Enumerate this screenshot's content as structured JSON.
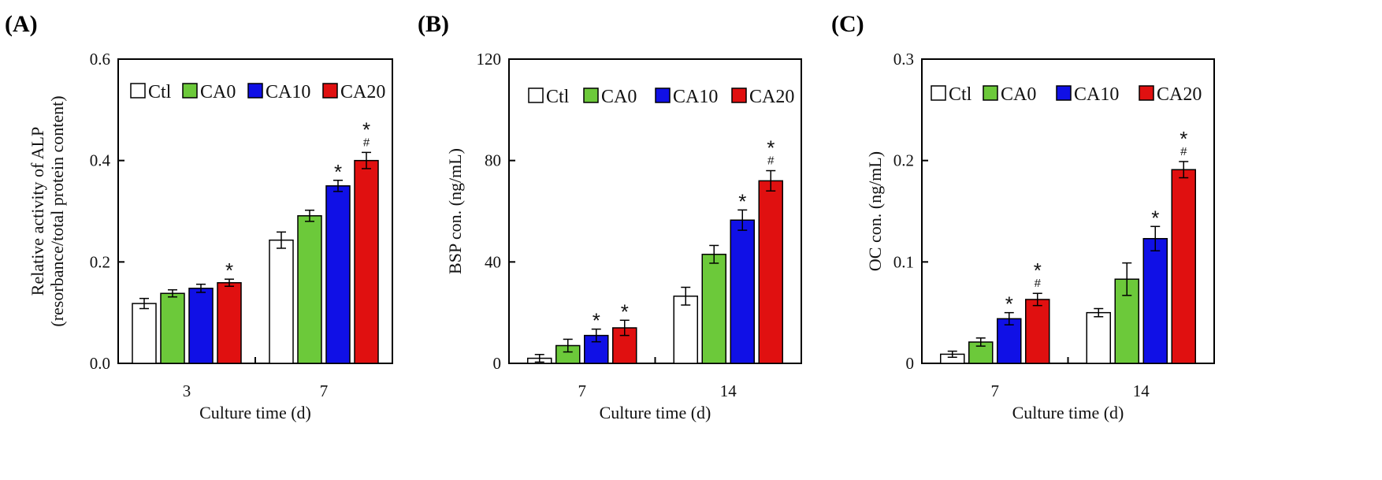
{
  "colors": {
    "Ctl": "#ffffff",
    "CA0": "#6cc93a",
    "CA10": "#1010e6",
    "CA20": "#e01010"
  },
  "chart_data": [
    {
      "panel_label": "(A)",
      "type": "bar",
      "xlabel": "Culture time (d)",
      "ylabel_line1": "Relative activity of ALP",
      "ylabel_line2": "(resorbance/total protein content)",
      "ylim": [
        0,
        0.6
      ],
      "yticks": [
        "0.0",
        "0.2",
        "0.4",
        "0.6"
      ],
      "legend_position": "top",
      "categories": [
        "3",
        "7"
      ],
      "series": [
        {
          "name": "Ctl",
          "values": [
            0.118,
            0.243
          ],
          "errors": [
            0.01,
            0.016
          ],
          "marks": [
            "",
            ""
          ]
        },
        {
          "name": "CA0",
          "values": [
            0.138,
            0.291
          ],
          "errors": [
            0.007,
            0.011
          ],
          "marks": [
            "",
            ""
          ]
        },
        {
          "name": "CA10",
          "values": [
            0.148,
            0.35
          ],
          "errors": [
            0.008,
            0.011
          ],
          "marks": [
            "",
            "*"
          ]
        },
        {
          "name": "CA20",
          "values": [
            0.159,
            0.4
          ],
          "errors": [
            0.007,
            0.016
          ],
          "marks": [
            "*",
            "*#"
          ]
        }
      ]
    },
    {
      "panel_label": "(B)",
      "type": "bar",
      "xlabel": "Culture time (d)",
      "ylabel_line1": "BSP con. (ng/mL)",
      "ylabel_line2": "",
      "ylim": [
        0,
        120
      ],
      "yticks": [
        "0",
        "40",
        "80",
        "120"
      ],
      "legend_position": "top",
      "categories": [
        "7",
        "14"
      ],
      "series": [
        {
          "name": "Ctl",
          "values": [
            2.0,
            26.5
          ],
          "errors": [
            1.5,
            3.5
          ],
          "marks": [
            "",
            ""
          ]
        },
        {
          "name": "CA0",
          "values": [
            7.0,
            43.0
          ],
          "errors": [
            2.5,
            3.5
          ],
          "marks": [
            "",
            ""
          ]
        },
        {
          "name": "CA10",
          "values": [
            11.0,
            56.5
          ],
          "errors": [
            2.5,
            4.0
          ],
          "marks": [
            "*",
            "*"
          ]
        },
        {
          "name": "CA20",
          "values": [
            14.0,
            72.0
          ],
          "errors": [
            3.0,
            4.0
          ],
          "marks": [
            "*",
            "*#"
          ]
        }
      ]
    },
    {
      "panel_label": "(C)",
      "type": "bar",
      "xlabel": "Culture time (d)",
      "ylabel_line1": "OC con. (ng/mL)",
      "ylabel_line2": "",
      "ylim": [
        0,
        0.3
      ],
      "yticks": [
        "0",
        "0.1",
        "0.2",
        "0.3"
      ],
      "legend_position": "top",
      "categories": [
        "7",
        "14"
      ],
      "series": [
        {
          "name": "Ctl",
          "values": [
            0.009,
            0.05
          ],
          "errors": [
            0.003,
            0.004
          ],
          "marks": [
            "",
            ""
          ]
        },
        {
          "name": "CA0",
          "values": [
            0.021,
            0.083
          ],
          "errors": [
            0.004,
            0.016
          ],
          "marks": [
            "",
            ""
          ]
        },
        {
          "name": "CA10",
          "values": [
            0.044,
            0.123
          ],
          "errors": [
            0.006,
            0.012
          ],
          "marks": [
            "*",
            "*"
          ]
        },
        {
          "name": "CA20",
          "values": [
            0.063,
            0.191
          ],
          "errors": [
            0.006,
            0.008
          ],
          "marks": [
            "*#",
            "*#"
          ]
        }
      ]
    }
  ]
}
